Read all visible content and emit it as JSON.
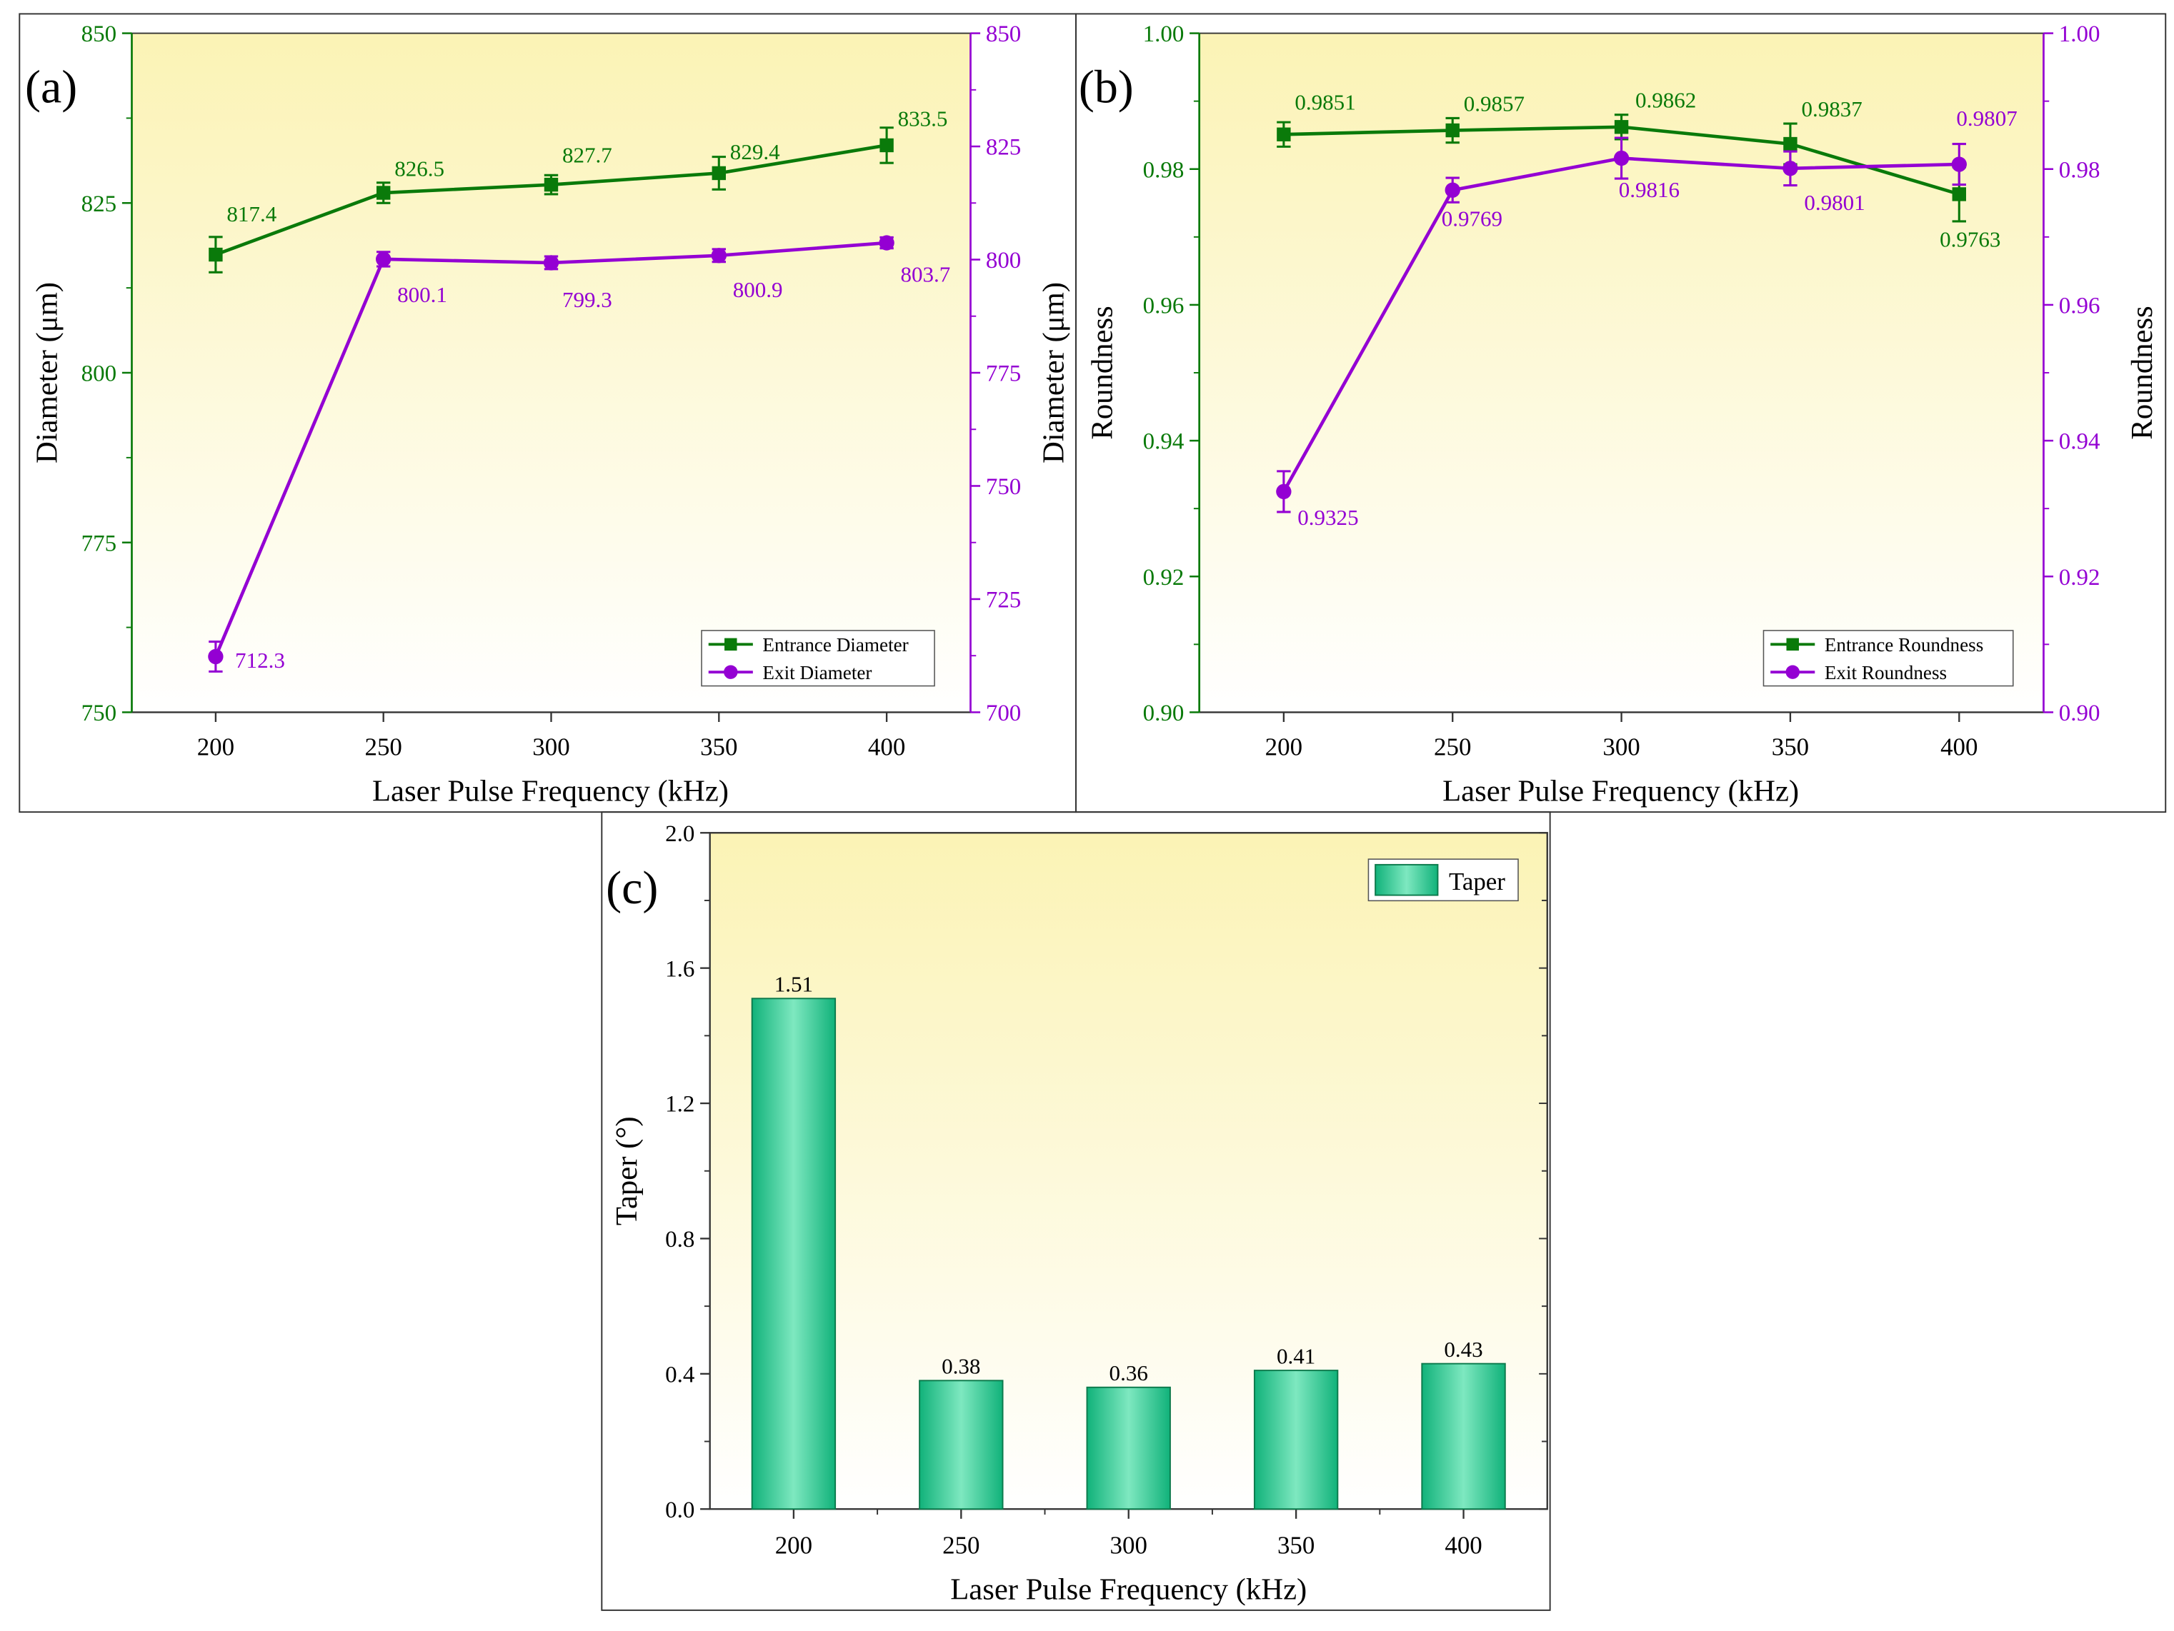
{
  "colors": {
    "entrance": "#0a7a0a",
    "exit": "#9400d3",
    "panel_top": "#fbf3b5",
    "panel_bottom": "#ffffff",
    "bar_edge": "#0c7a4c",
    "bar_dark": "#11b27a",
    "bar_light": "#7ee8c0",
    "frame": "#333333"
  },
  "chart_data": [
    {
      "id": "a",
      "type": "line",
      "panel_label": "(a)",
      "xlabel": "Laser Pulse Frequency (kHz)",
      "ylabel_left": "Diameter (μm)",
      "ylabel_right": "Diameter (μm)",
      "x": [
        200,
        250,
        300,
        350,
        400
      ],
      "x_ticks": [
        "200",
        "250",
        "300",
        "350",
        "400"
      ],
      "xlim": [
        175,
        425
      ],
      "y_left": {
        "lim": [
          750,
          850
        ],
        "ticks": [
          "750",
          "775",
          "800",
          "825",
          "850"
        ]
      },
      "y_right": {
        "lim": [
          700,
          850
        ],
        "ticks": [
          "700",
          "725",
          "750",
          "775",
          "800",
          "825",
          "850"
        ]
      },
      "series": [
        {
          "name": "Entrance Diameter",
          "axis": "left",
          "marker": "square",
          "values": [
            817.4,
            826.5,
            827.7,
            829.4,
            833.5
          ],
          "errors": [
            2.6,
            1.5,
            1.4,
            2.4,
            2.6
          ],
          "labels": [
            "817.4",
            "826.5",
            "827.7",
            "829.4",
            "833.5"
          ]
        },
        {
          "name": "Exit Diameter",
          "axis": "right",
          "marker": "circle",
          "values": [
            712.3,
            800.1,
            799.3,
            800.9,
            803.7
          ],
          "errors": [
            3.3,
            1.6,
            1.4,
            1.4,
            1.2
          ],
          "labels": [
            "712.3",
            "800.1",
            "799.3",
            "800.9",
            "803.7"
          ]
        }
      ],
      "legend": [
        "Entrance Diameter",
        "Exit Diameter"
      ],
      "legend_position": "bottom-right"
    },
    {
      "id": "b",
      "type": "line",
      "panel_label": "(b)",
      "xlabel": "Laser Pulse Frequency (kHz)",
      "ylabel_left": "Roundness",
      "ylabel_right": "Roundness",
      "x": [
        200,
        250,
        300,
        350,
        400
      ],
      "x_ticks": [
        "200",
        "250",
        "300",
        "350",
        "400"
      ],
      "xlim": [
        175,
        425
      ],
      "y_left": {
        "lim": [
          0.9,
          1.0
        ],
        "ticks": [
          "0.90",
          "0.92",
          "0.94",
          "0.96",
          "0.98",
          "1.00"
        ]
      },
      "y_right": {
        "lim": [
          0.9,
          1.0
        ],
        "ticks": [
          "0.90",
          "0.92",
          "0.94",
          "0.96",
          "0.98",
          "1.00"
        ]
      },
      "series": [
        {
          "name": "Entrance Roundness",
          "axis": "left",
          "marker": "square",
          "values": [
            0.9851,
            0.9857,
            0.9862,
            0.9837,
            0.9763
          ],
          "errors": [
            0.0018,
            0.0018,
            0.0018,
            0.003,
            0.004
          ],
          "labels": [
            "0.9851",
            "0.9857",
            "0.9862",
            "0.9837",
            "0.9763"
          ]
        },
        {
          "name": "Exit Roundness",
          "axis": "right",
          "marker": "circle",
          "values": [
            0.9325,
            0.9769,
            0.9816,
            0.9801,
            0.9807
          ],
          "errors": [
            0.003,
            0.0018,
            0.003,
            0.0025,
            0.003
          ],
          "labels": [
            "0.9325",
            "0.9769",
            "0.9816",
            "0.9801",
            "0.9807"
          ]
        }
      ],
      "legend": [
        "Entrance Roundness",
        "Exit Roundness"
      ],
      "legend_position": "bottom-right"
    },
    {
      "id": "c",
      "type": "bar",
      "panel_label": "(c)",
      "xlabel": "Laser Pulse Frequency (kHz)",
      "ylabel": "Taper (°)",
      "categories": [
        "200",
        "250",
        "300",
        "350",
        "400"
      ],
      "values": [
        1.51,
        0.38,
        0.36,
        0.41,
        0.43
      ],
      "labels": [
        "1.51",
        "0.38",
        "0.36",
        "0.41",
        "0.43"
      ],
      "ylim": [
        0,
        2.0
      ],
      "y_ticks": [
        "0.0",
        "0.4",
        "0.8",
        "1.2",
        "1.6",
        "2.0"
      ],
      "legend": [
        "Taper"
      ],
      "legend_position": "top-right"
    }
  ]
}
